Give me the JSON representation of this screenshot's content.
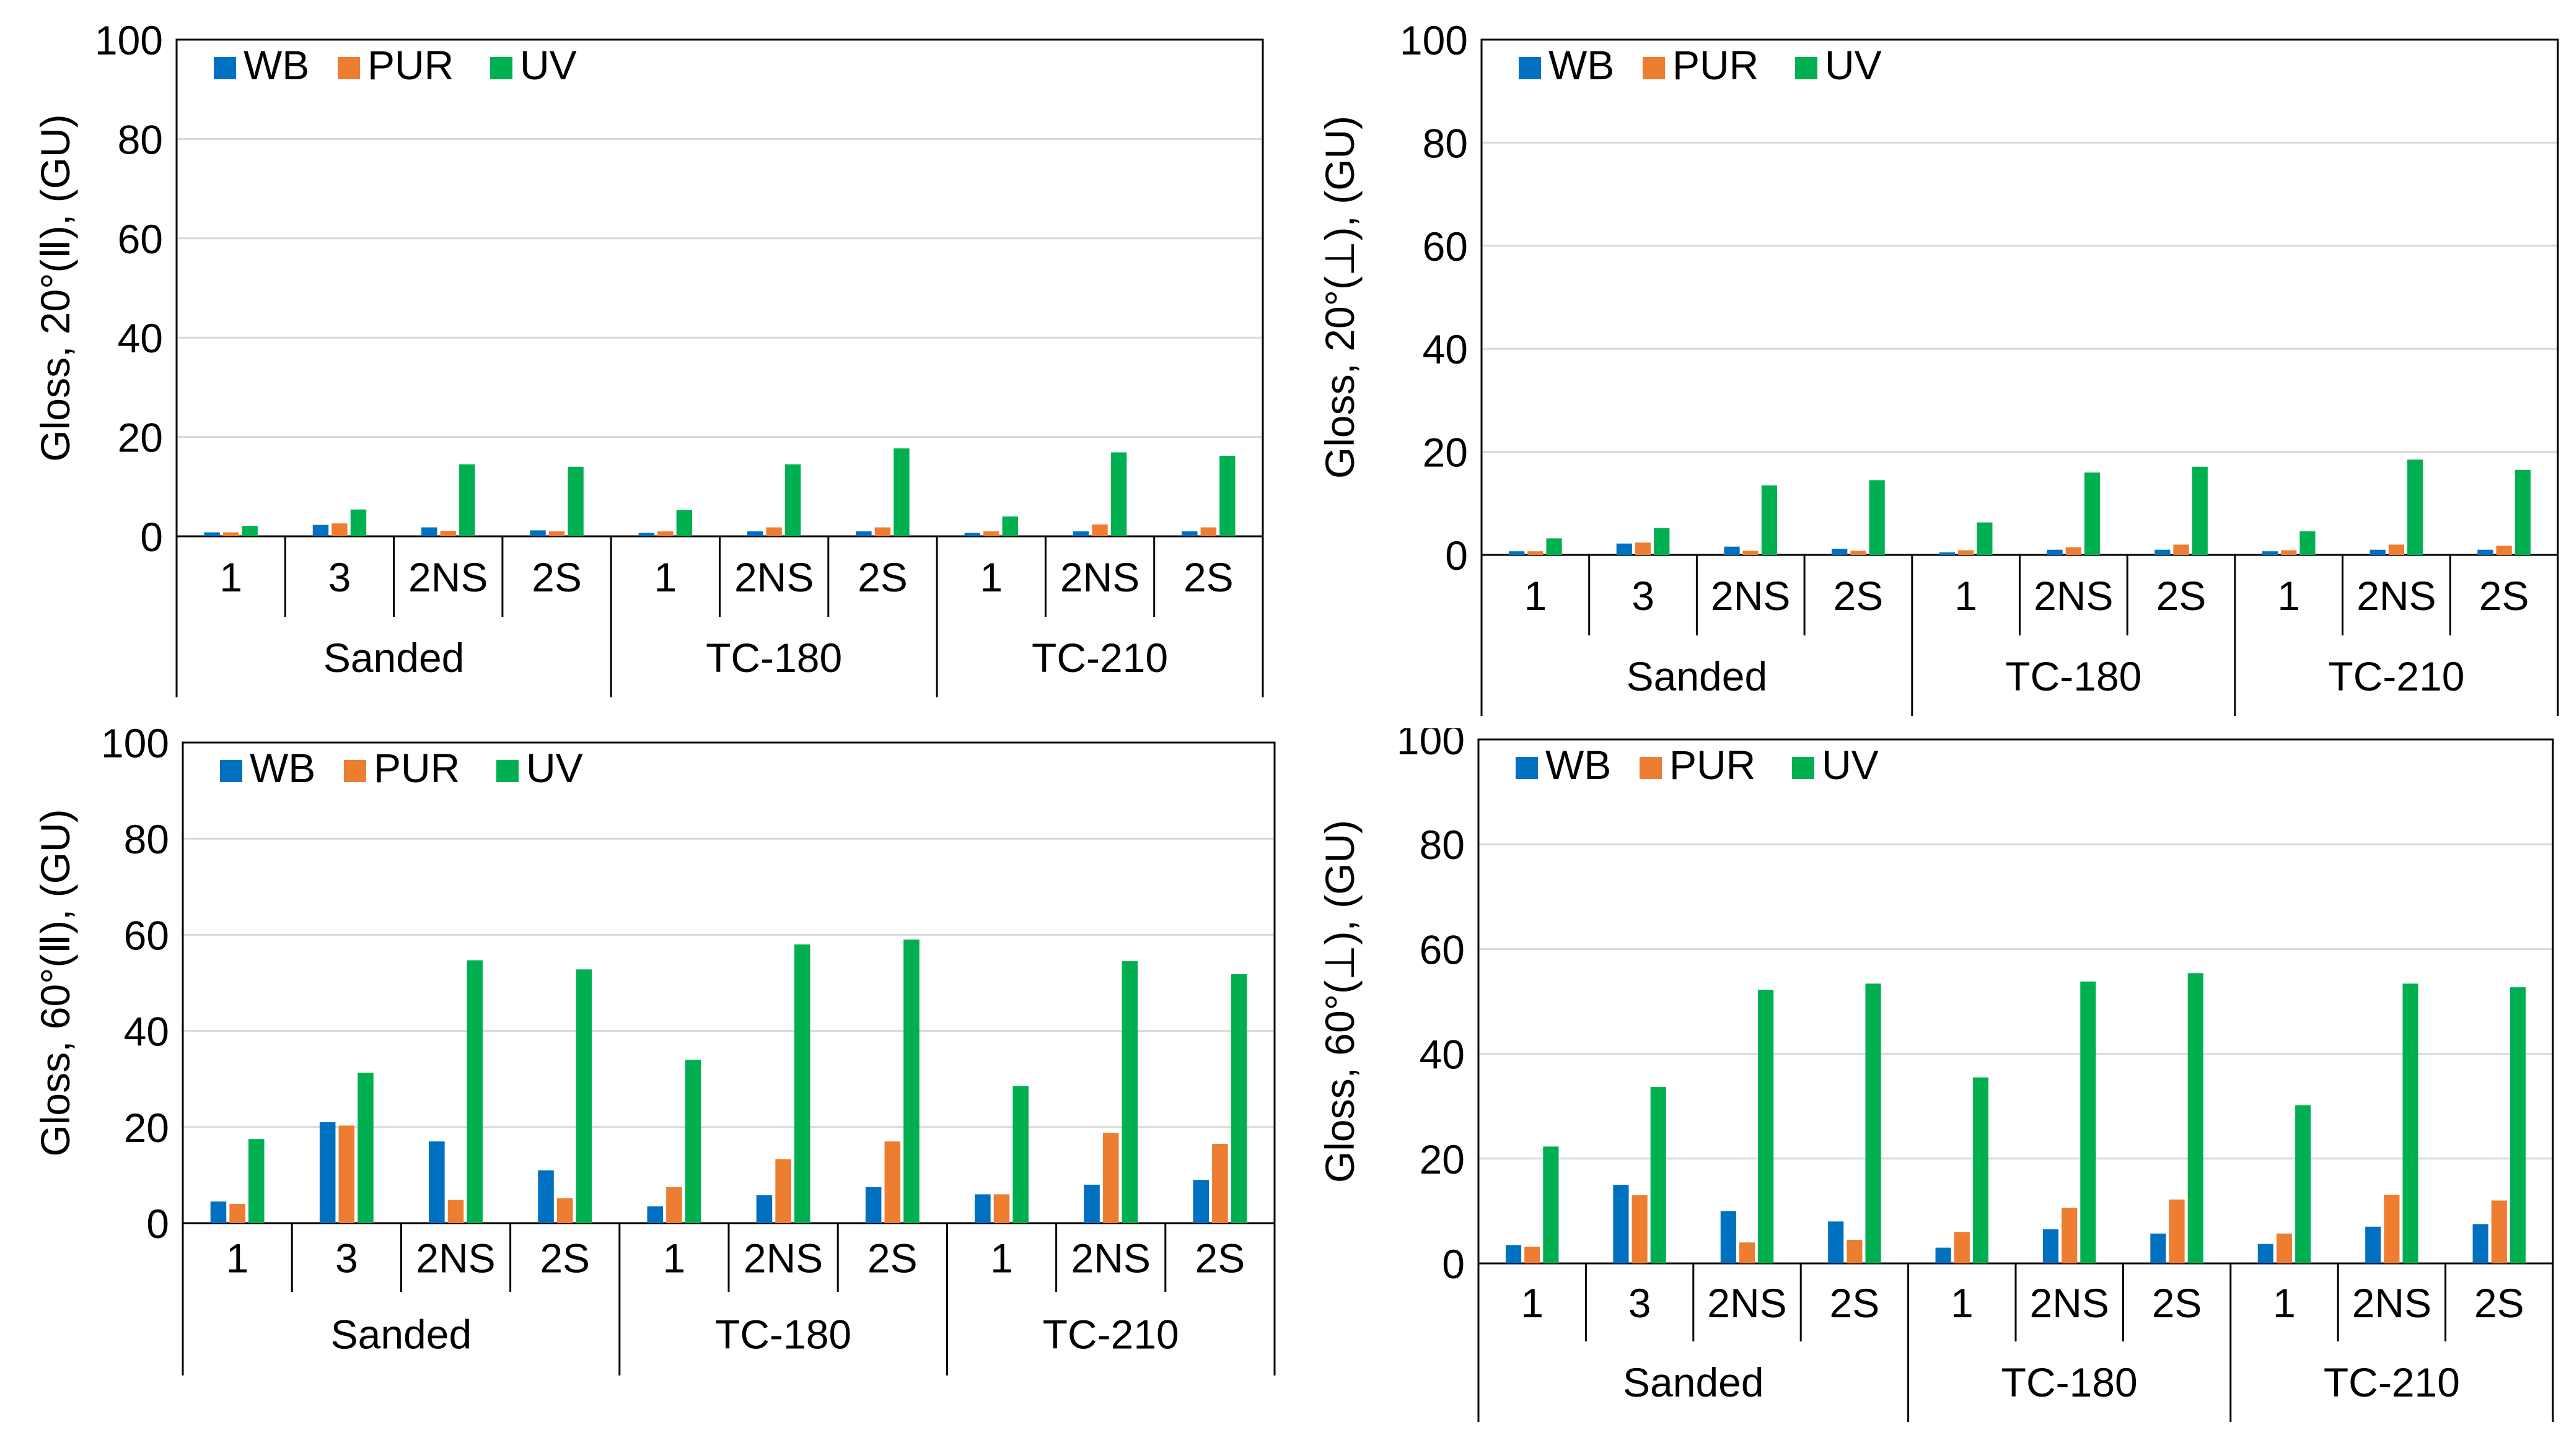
{
  "chart_data": [
    {
      "type": "bar",
      "ylabel": "Gloss, 20°(Ⅱ), (GU)",
      "ylim": [
        0,
        100
      ],
      "yticks": [
        0,
        20,
        40,
        60,
        80,
        100
      ],
      "groups": [
        {
          "label": "Sanded",
          "categories": [
            "1",
            "3",
            "2NS",
            "2S"
          ]
        },
        {
          "label": "TC-180",
          "categories": [
            "1",
            "2NS",
            "2S"
          ]
        },
        {
          "label": "TC-210",
          "categories": [
            "1",
            "2NS",
            "2S"
          ]
        }
      ],
      "series": [
        {
          "name": "WB",
          "color": "#0070C0",
          "values": [
            0.8,
            2.3,
            1.8,
            1.2,
            0.7,
            1.0,
            1.0,
            0.7,
            1.0,
            1.0
          ]
        },
        {
          "name": "PUR",
          "color": "#ED7D31",
          "values": [
            0.8,
            2.6,
            1.1,
            1.0,
            1.0,
            1.8,
            1.8,
            1.0,
            2.4,
            1.8
          ]
        },
        {
          "name": "UV",
          "color": "#00B050",
          "values": [
            2.1,
            5.4,
            14.5,
            14.0,
            5.3,
            14.5,
            17.7,
            4.0,
            16.9,
            16.2
          ]
        }
      ],
      "legend": "top-left",
      "grid": true
    },
    {
      "type": "bar",
      "ylabel": "Gloss, 20°(⊥), (GU)",
      "ylim": [
        0,
        100
      ],
      "yticks": [
        0,
        20,
        40,
        60,
        80,
        100
      ],
      "groups": [
        {
          "label": "Sanded",
          "categories": [
            "1",
            "3",
            "2NS",
            "2S"
          ]
        },
        {
          "label": "TC-180",
          "categories": [
            "1",
            "2NS",
            "2S"
          ]
        },
        {
          "label": "TC-210",
          "categories": [
            "1",
            "2NS",
            "2S"
          ]
        }
      ],
      "series": [
        {
          "name": "WB",
          "color": "#0070C0",
          "values": [
            0.7,
            2.2,
            1.6,
            1.2,
            0.5,
            1.0,
            1.0,
            0.7,
            1.0,
            1.0
          ]
        },
        {
          "name": "PUR",
          "color": "#ED7D31",
          "values": [
            0.7,
            2.4,
            0.8,
            0.8,
            0.9,
            1.5,
            2.0,
            0.9,
            2.0,
            1.8
          ]
        },
        {
          "name": "UV",
          "color": "#00B050",
          "values": [
            3.2,
            5.2,
            13.5,
            14.5,
            6.3,
            16.0,
            17.1,
            4.6,
            18.5,
            16.5
          ]
        }
      ],
      "legend": "top-left",
      "grid": true
    },
    {
      "type": "bar",
      "ylabel": "Gloss, 60°(Ⅱ), (GU)",
      "ylim": [
        0,
        100
      ],
      "yticks": [
        0,
        20,
        40,
        60,
        80,
        100
      ],
      "groups": [
        {
          "label": "Sanded",
          "categories": [
            "1",
            "3",
            "2NS",
            "2S"
          ]
        },
        {
          "label": "TC-180",
          "categories": [
            "1",
            "2NS",
            "2S"
          ]
        },
        {
          "label": "TC-210",
          "categories": [
            "1",
            "2NS",
            "2S"
          ]
        }
      ],
      "series": [
        {
          "name": "WB",
          "color": "#0070C0",
          "values": [
            4.5,
            21.0,
            17.0,
            11.0,
            3.5,
            5.8,
            7.5,
            6.0,
            8.0,
            9.0
          ]
        },
        {
          "name": "PUR",
          "color": "#ED7D31",
          "values": [
            4.0,
            20.3,
            4.8,
            5.2,
            7.5,
            13.3,
            17.0,
            6.0,
            18.8,
            16.5
          ]
        },
        {
          "name": "UV",
          "color": "#00B050",
          "values": [
            17.5,
            31.3,
            54.7,
            52.8,
            34.0,
            58.0,
            59.0,
            28.5,
            54.5,
            51.8
          ]
        }
      ],
      "legend": "top-left",
      "grid": true
    },
    {
      "type": "bar",
      "ylabel": "Gloss, 60°(⊥), (GU)",
      "ylim": [
        0,
        100
      ],
      "yticks": [
        0,
        20,
        40,
        60,
        80,
        100
      ],
      "groups": [
        {
          "label": "Sanded",
          "categories": [
            "1",
            "3",
            "2NS",
            "2S"
          ]
        },
        {
          "label": "TC-180",
          "categories": [
            "1",
            "2NS",
            "2S"
          ]
        },
        {
          "label": "TC-210",
          "categories": [
            "1",
            "2NS",
            "2S"
          ]
        }
      ],
      "series": [
        {
          "name": "WB",
          "color": "#0070C0",
          "values": [
            3.5,
            15.0,
            10.0,
            8.0,
            3.0,
            6.5,
            5.7,
            3.7,
            7.0,
            7.5
          ]
        },
        {
          "name": "PUR",
          "color": "#ED7D31",
          "values": [
            3.2,
            13.0,
            4.0,
            4.5,
            6.0,
            10.6,
            12.2,
            5.7,
            13.1,
            12.0
          ]
        },
        {
          "name": "UV",
          "color": "#00B050",
          "values": [
            22.3,
            33.7,
            52.2,
            53.4,
            35.5,
            53.8,
            55.4,
            30.2,
            53.4,
            52.7
          ]
        }
      ],
      "legend": "top-left",
      "grid": true
    }
  ]
}
